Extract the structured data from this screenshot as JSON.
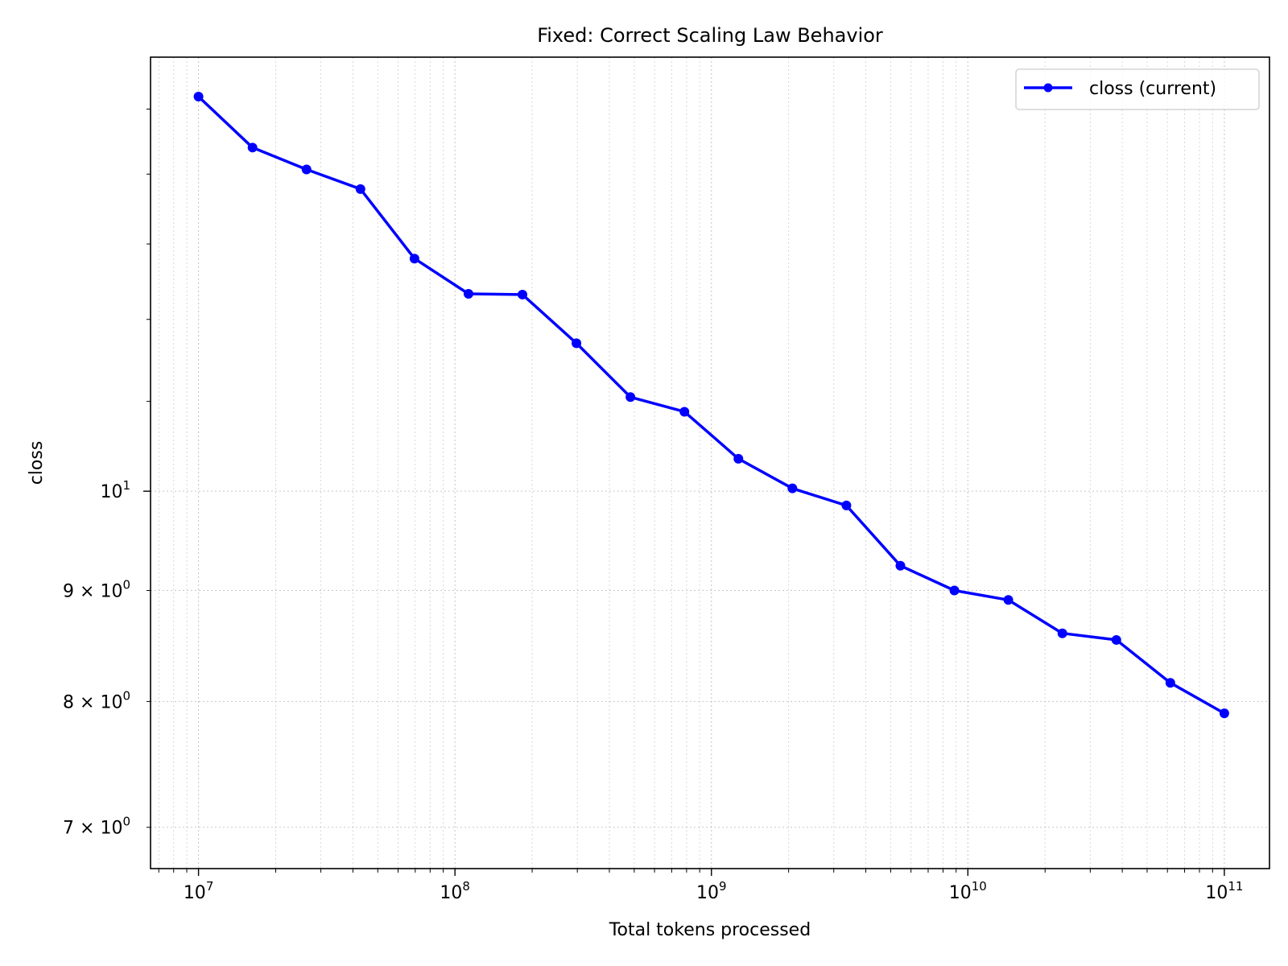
{
  "chart_data": {
    "type": "line",
    "title": "Fixed: Correct Scaling Law Behavior",
    "xlabel": "Total tokens processed",
    "ylabel": "closs",
    "x_scale": "log",
    "y_scale": "log",
    "xlim": [
      6500000,
      150000000000
    ],
    "ylim": [
      6.7,
      15.85
    ],
    "grid": true,
    "legend_position": "top-right",
    "x_ticks": [
      {
        "value": 10000000,
        "base": "10",
        "exp": "7"
      },
      {
        "value": 100000000,
        "base": "10",
        "exp": "8"
      },
      {
        "value": 1000000000,
        "base": "10",
        "exp": "9"
      },
      {
        "value": 10000000000,
        "base": "10",
        "exp": "10"
      },
      {
        "value": 100000000000,
        "base": "10",
        "exp": "11"
      }
    ],
    "y_ticks": [
      {
        "value": 10,
        "text": "10",
        "sup": "1"
      },
      {
        "value": 9,
        "text": "9 × 10",
        "sup": "0"
      },
      {
        "value": 8,
        "text": "8 × 10",
        "sup": "0"
      },
      {
        "value": 7,
        "text": "7 × 10",
        "sup": "0"
      }
    ],
    "series": [
      {
        "name": "closs (current)",
        "color": "#0000ff",
        "x": [
          10000000,
          16240000,
          26370000,
          42810000,
          69520000,
          112900000,
          183300000,
          297600000,
          483300000,
          784800000,
          1274000000,
          2069000000,
          3360000000,
          5456000000,
          8859000000,
          14380000000,
          23360000000,
          37930000000,
          61580000000,
          100000000000
        ],
        "y": [
          15.2,
          14.4,
          14.07,
          13.78,
          12.8,
          12.33,
          12.32,
          11.7,
          11.05,
          10.88,
          10.35,
          10.03,
          9.85,
          9.24,
          9.0,
          8.91,
          8.6,
          8.54,
          8.16,
          7.9
        ]
      }
    ]
  }
}
